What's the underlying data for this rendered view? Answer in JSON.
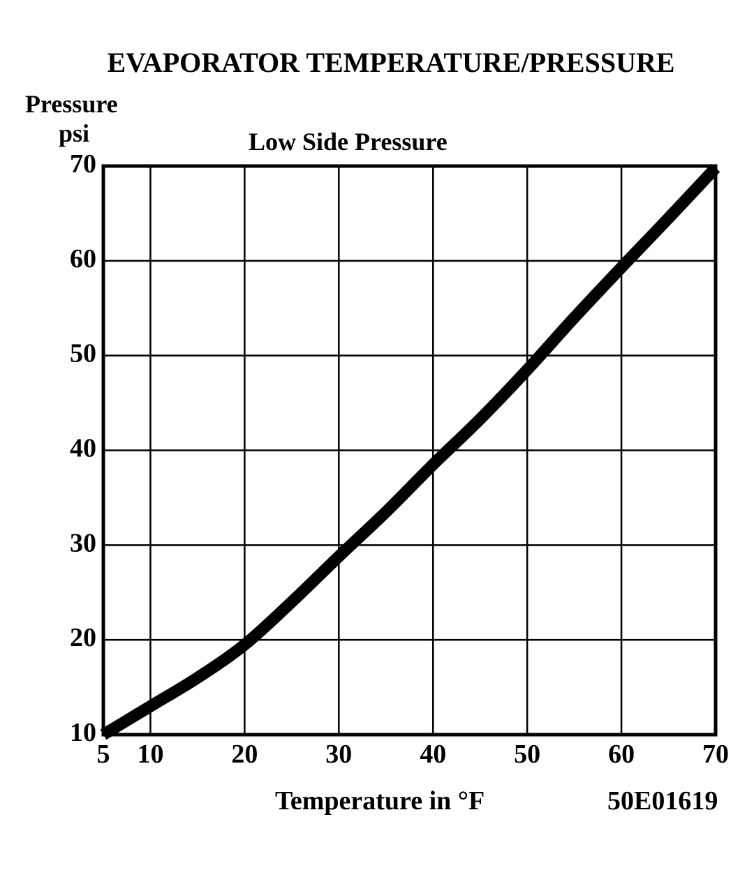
{
  "chart_data": {
    "type": "line",
    "title": "EVAPORATOR TEMPERATURE/PRESSURE",
    "subtitle": "Low Side Pressure",
    "ylabel_line1": "Pressure",
    "ylabel_line2": "psi",
    "xlabel": "Temperature in  °F",
    "code": "50E01619",
    "xlim": [
      5,
      70
    ],
    "ylim": [
      10,
      70
    ],
    "x_ticks": [
      5,
      10,
      20,
      30,
      40,
      50,
      60,
      70
    ],
    "x_tick_labels": [
      "5",
      "10",
      "20",
      "30",
      "40",
      "50",
      "60",
      "70"
    ],
    "x_gridlines": [
      10,
      20,
      30,
      40,
      50,
      60,
      70
    ],
    "y_ticks": [
      10,
      20,
      30,
      40,
      50,
      60,
      70
    ],
    "y_tick_labels": [
      "10",
      "20",
      "30",
      "40",
      "50",
      "60",
      "70"
    ],
    "grid": true,
    "series": [
      {
        "x": [
          5,
          10,
          15,
          20,
          25,
          30,
          35,
          40,
          45,
          50,
          55,
          60,
          65,
          70
        ],
        "y": [
          10,
          13,
          16,
          19.5,
          24,
          28.8,
          33.5,
          38.5,
          43.3,
          48.5,
          54,
          59.3,
          64.5,
          69.8
        ]
      }
    ],
    "line_color": "#000000"
  }
}
